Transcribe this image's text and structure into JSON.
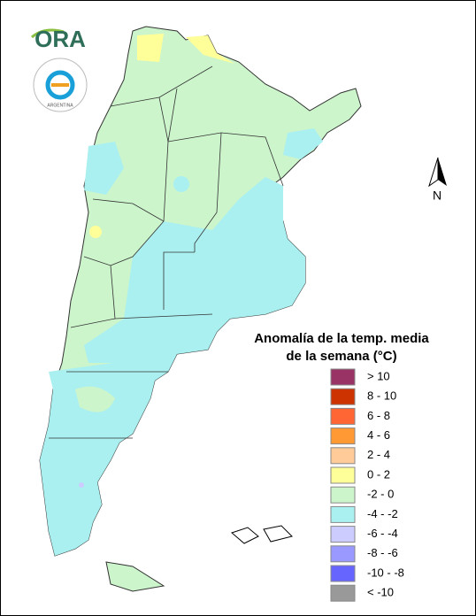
{
  "header": {
    "logo_text": "ORA",
    "agency_text": "ARGENTINA"
  },
  "compass": {
    "label": "N"
  },
  "legend": {
    "title_lines": [
      "Anomalía de la temp. media",
      "de la semana (°C)"
    ],
    "items": [
      {
        "label": "> 10",
        "color": "#993366"
      },
      {
        "label": "8 - 10",
        "color": "#cc3300"
      },
      {
        "label": "6 - 8",
        "color": "#ff6633"
      },
      {
        "label": "4 - 6",
        "color": "#ff9933"
      },
      {
        "label": "2 - 4",
        "color": "#ffcc99"
      },
      {
        "label": "0 - 2",
        "color": "#ffff99"
      },
      {
        "label": "-2 - 0",
        "color": "#ccf5cc"
      },
      {
        "label": "-4 - -2",
        "color": "#aaf0f0"
      },
      {
        "label": "-6 - -4",
        "color": "#ccccff"
      },
      {
        "label": "-8 - -6",
        "color": "#9999ff"
      },
      {
        "label": "-10 - -8",
        "color": "#6666ff"
      },
      {
        "label": "< -10",
        "color": "#999999"
      }
    ]
  }
}
